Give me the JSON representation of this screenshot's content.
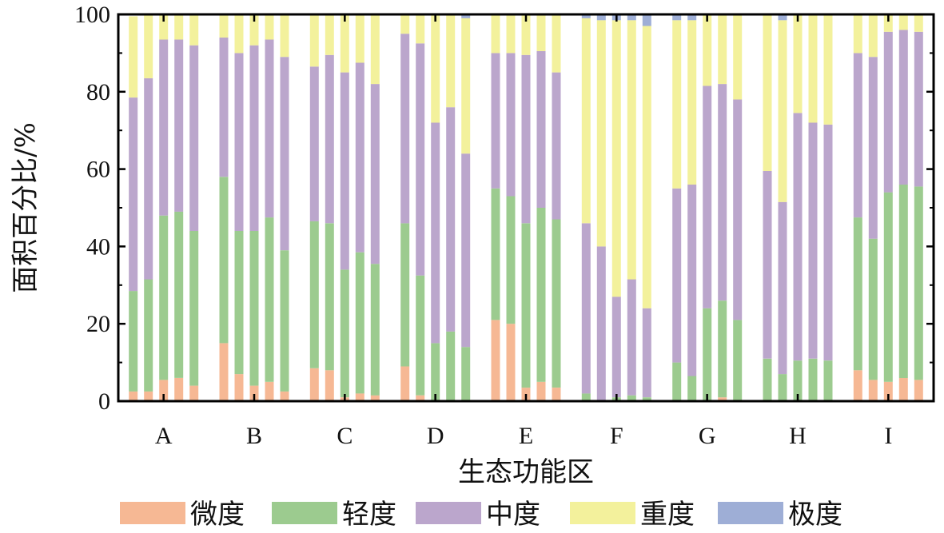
{
  "chart_data": {
    "type": "bar",
    "stacked": true,
    "xlabel": "生态功能区",
    "ylabel": "面积百分比/%",
    "ylim": [
      0,
      100
    ],
    "yticks": [
      0,
      20,
      40,
      60,
      80,
      100
    ],
    "bars_per_group": 5,
    "grid": false,
    "legend_position": "bottom",
    "series_names": [
      "微度",
      "轻度",
      "中度",
      "重度",
      "极度"
    ],
    "colors": [
      "#f6b894",
      "#9ccb8f",
      "#bba6cc",
      "#f3f19c",
      "#9eaed6"
    ],
    "groups": [
      {
        "label": "A",
        "bars": [
          [
            2.5,
            26,
            50,
            21,
            0
          ],
          [
            2.5,
            29,
            52,
            16.5,
            0
          ],
          [
            5.5,
            42.5,
            45.5,
            6.5,
            0
          ],
          [
            6,
            43,
            44.5,
            6.5,
            0
          ],
          [
            4,
            40,
            48,
            8,
            0
          ]
        ]
      },
      {
        "label": "B",
        "bars": [
          [
            15,
            43,
            36,
            6,
            0
          ],
          [
            7,
            37,
            46,
            10,
            0
          ],
          [
            4,
            40,
            48,
            8,
            0
          ],
          [
            5,
            42.5,
            46,
            6.5,
            0
          ],
          [
            2.5,
            36.5,
            50,
            11,
            0
          ]
        ]
      },
      {
        "label": "C",
        "bars": [
          [
            8.5,
            38,
            40,
            13.5,
            0
          ],
          [
            8,
            38,
            43.5,
            10.5,
            0
          ],
          [
            1,
            33,
            51,
            15,
            0
          ],
          [
            2,
            36.5,
            49,
            12.5,
            0
          ],
          [
            1.5,
            34,
            46.5,
            18,
            0
          ]
        ]
      },
      {
        "label": "D",
        "bars": [
          [
            9,
            37,
            49,
            5,
            0
          ],
          [
            1.5,
            31,
            60,
            7.5,
            0
          ],
          [
            0,
            15,
            57,
            28,
            0
          ],
          [
            0,
            18,
            58,
            24,
            0
          ],
          [
            0,
            14,
            50,
            35,
            1
          ]
        ]
      },
      {
        "label": "E",
        "bars": [
          [
            21,
            34,
            35,
            10,
            0
          ],
          [
            20,
            33,
            37,
            10,
            0
          ],
          [
            3.5,
            42.5,
            43.5,
            10.5,
            0
          ],
          [
            5,
            45,
            40.5,
            9.5,
            0
          ],
          [
            3.5,
            43.5,
            38,
            15,
            0
          ]
        ]
      },
      {
        "label": "F",
        "bars": [
          [
            0,
            2,
            44,
            53,
            1
          ],
          [
            0,
            0,
            40,
            58.5,
            1.5
          ],
          [
            0,
            1,
            26,
            71.5,
            1.5
          ],
          [
            0,
            1.5,
            30,
            67,
            1.5
          ],
          [
            0,
            1,
            23,
            73,
            3
          ]
        ]
      },
      {
        "label": "G",
        "bars": [
          [
            0,
            10,
            45,
            43.5,
            1.5
          ],
          [
            0,
            6.5,
            49.5,
            42.5,
            1.5
          ],
          [
            0,
            24,
            57.5,
            18.5,
            0
          ],
          [
            1,
            25,
            56,
            18,
            0
          ],
          [
            0,
            21,
            57,
            22,
            0
          ]
        ]
      },
      {
        "label": "H",
        "bars": [
          [
            0,
            11,
            48.5,
            40.5,
            0
          ],
          [
            0,
            7,
            44.5,
            47,
            1.5
          ],
          [
            0,
            10.5,
            64,
            25.5,
            0
          ],
          [
            0,
            11,
            61,
            28,
            0
          ],
          [
            0,
            10.5,
            61,
            28.5,
            0
          ]
        ]
      },
      {
        "label": "I",
        "bars": [
          [
            8,
            39.5,
            42.5,
            10,
            0
          ],
          [
            5.5,
            36.5,
            47,
            11,
            0
          ],
          [
            5,
            49,
            41.5,
            4.5,
            0
          ],
          [
            6,
            50,
            40,
            4,
            0
          ],
          [
            5.5,
            50,
            40,
            4.5,
            0
          ]
        ]
      }
    ]
  }
}
